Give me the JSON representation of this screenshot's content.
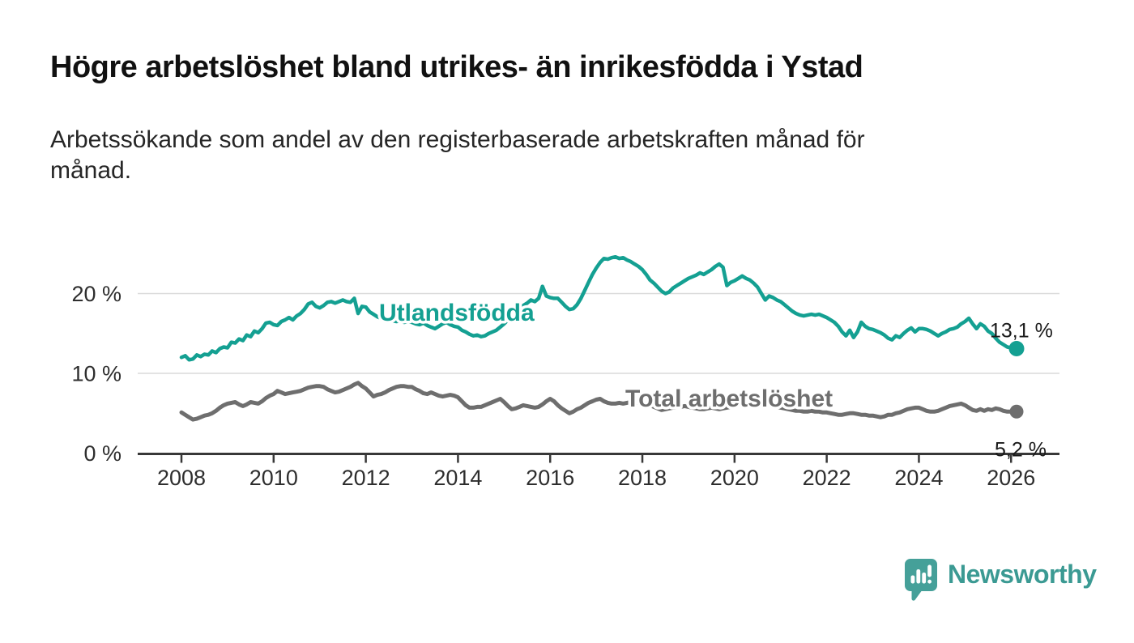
{
  "header": {
    "title": "Högre arbetslöshet bland utrikes- än inrikesfödda i Ystad",
    "subtitle": "Arbetssökande som andel av den registerbaserade arbetskraften månad för\nmånad."
  },
  "chart_data": {
    "type": "line",
    "x_unit": "month",
    "x_start": "2008-01",
    "x_end": "2026-02",
    "x_tick_years": [
      2008,
      2010,
      2012,
      2014,
      2016,
      2018,
      2020,
      2022,
      2024,
      2026
    ],
    "ylim": [
      0,
      26
    ],
    "yticks": [
      {
        "value": 0,
        "label": "0 %"
      },
      {
        "value": 10,
        "label": "10 %"
      },
      {
        "value": 20,
        "label": "20 %"
      }
    ],
    "grid": true,
    "legend_position": "inline-labels",
    "colors": {
      "utlandsfodda": "#14A092",
      "total": "#6E6E6E",
      "gridline": "#DADADA",
      "axis": "#383838",
      "value_label": "#1A1A1A"
    },
    "series": [
      {
        "name": "Utlandsfödda",
        "end_label": "13,1 %",
        "last_value": 13.1,
        "values": [
          12.0,
          12.2,
          11.7,
          11.8,
          12.3,
          12.1,
          12.4,
          12.3,
          12.8,
          12.6,
          13.1,
          13.3,
          13.2,
          13.9,
          13.8,
          14.3,
          14.1,
          14.8,
          14.6,
          15.3,
          15.1,
          15.6,
          16.3,
          16.4,
          16.1,
          16.0,
          16.5,
          16.7,
          17.0,
          16.7,
          17.2,
          17.5,
          18.0,
          18.7,
          18.9,
          18.4,
          18.2,
          18.5,
          18.9,
          19.0,
          18.8,
          19.0,
          19.2,
          19.0,
          18.9,
          19.4,
          17.5,
          18.4,
          18.3,
          17.7,
          17.4,
          17.1,
          16.9,
          16.8,
          16.7,
          16.6,
          16.5,
          16.6,
          16.4,
          16.5,
          16.4,
          16.2,
          16.1,
          16.3,
          16.0,
          15.8,
          15.6,
          15.9,
          16.2,
          16.4,
          16.1,
          15.9,
          15.8,
          15.4,
          15.2,
          14.9,
          14.7,
          14.8,
          14.6,
          14.7,
          15.0,
          15.2,
          15.4,
          15.8,
          16.2,
          16.7,
          17.2,
          17.6,
          18.1,
          18.5,
          18.8,
          19.2,
          19.0,
          19.4,
          20.9,
          19.7,
          19.5,
          19.4,
          19.4,
          18.9,
          18.4,
          18.0,
          18.1,
          18.6,
          19.4,
          20.4,
          21.4,
          22.4,
          23.2,
          23.9,
          24.4,
          24.3,
          24.5,
          24.6,
          24.4,
          24.5,
          24.2,
          24.0,
          23.7,
          23.4,
          23.0,
          22.4,
          21.7,
          21.3,
          20.8,
          20.3,
          20.0,
          20.2,
          20.7,
          21.0,
          21.3,
          21.6,
          21.9,
          22.1,
          22.3,
          22.6,
          22.4,
          22.7,
          23.0,
          23.4,
          23.7,
          23.3,
          21.0,
          21.4,
          21.6,
          21.9,
          22.2,
          21.9,
          21.7,
          21.3,
          20.8,
          20.0,
          19.2,
          19.7,
          19.5,
          19.2,
          19.0,
          18.6,
          18.2,
          17.8,
          17.5,
          17.3,
          17.2,
          17.3,
          17.4,
          17.3,
          17.4,
          17.2,
          17.0,
          16.7,
          16.4,
          15.9,
          15.2,
          14.7,
          15.4,
          14.5,
          15.2,
          16.4,
          15.9,
          15.6,
          15.5,
          15.3,
          15.1,
          14.8,
          14.4,
          14.2,
          14.7,
          14.5,
          15.0,
          15.4,
          15.7,
          15.2,
          15.6,
          15.6,
          15.5,
          15.3,
          15.0,
          14.7,
          15.0,
          15.2,
          15.5,
          15.6,
          15.8,
          16.2,
          16.5,
          16.9,
          16.2,
          15.6,
          16.2,
          15.9,
          15.3,
          15.0,
          14.4,
          13.9,
          13.6,
          13.3,
          13.2,
          13.1
        ]
      },
      {
        "name": "Total arbetslöshet",
        "end_label": "5,2 %",
        "last_value": 5.2,
        "values": [
          5.1,
          4.8,
          4.5,
          4.2,
          4.3,
          4.5,
          4.7,
          4.8,
          5.0,
          5.3,
          5.7,
          6.0,
          6.2,
          6.3,
          6.4,
          6.1,
          5.9,
          6.1,
          6.4,
          6.3,
          6.2,
          6.5,
          6.9,
          7.2,
          7.4,
          7.8,
          7.6,
          7.4,
          7.5,
          7.6,
          7.7,
          7.8,
          8.0,
          8.2,
          8.3,
          8.4,
          8.4,
          8.3,
          8.0,
          7.8,
          7.6,
          7.7,
          7.9,
          8.1,
          8.3,
          8.6,
          8.8,
          8.4,
          8.1,
          7.6,
          7.1,
          7.3,
          7.4,
          7.6,
          7.9,
          8.1,
          8.3,
          8.4,
          8.4,
          8.3,
          8.3,
          8.0,
          7.8,
          7.5,
          7.4,
          7.6,
          7.4,
          7.2,
          7.1,
          7.2,
          7.3,
          7.2,
          7.0,
          6.5,
          6.0,
          5.7,
          5.7,
          5.8,
          5.8,
          6.0,
          6.2,
          6.4,
          6.6,
          6.8,
          6.4,
          5.9,
          5.5,
          5.6,
          5.8,
          6.0,
          5.9,
          5.8,
          5.7,
          5.8,
          6.1,
          6.5,
          6.8,
          6.5,
          6.0,
          5.6,
          5.3,
          5.0,
          5.2,
          5.5,
          5.7,
          6.0,
          6.3,
          6.5,
          6.7,
          6.8,
          6.5,
          6.3,
          6.2,
          6.2,
          6.3,
          6.2,
          6.3,
          6.4,
          6.3,
          6.3,
          6.3,
          6.2,
          6.0,
          5.8,
          5.6,
          5.4,
          5.5,
          5.6,
          5.7,
          5.8,
          5.8,
          5.9,
          5.8,
          5.7,
          5.6,
          5.5,
          5.5,
          5.6,
          5.7,
          5.6,
          5.5,
          5.6,
          5.7,
          5.8,
          5.9,
          6.1,
          6.3,
          6.5,
          6.5,
          6.4,
          6.3,
          6.2,
          6.1,
          6.0,
          5.9,
          5.8,
          5.7,
          5.6,
          5.5,
          5.4,
          5.3,
          5.3,
          5.2,
          5.2,
          5.3,
          5.2,
          5.2,
          5.1,
          5.1,
          5.0,
          4.9,
          4.8,
          4.8,
          4.9,
          5.0,
          5.0,
          4.9,
          4.8,
          4.8,
          4.7,
          4.7,
          4.6,
          4.5,
          4.6,
          4.8,
          4.8,
          5.0,
          5.1,
          5.3,
          5.5,
          5.6,
          5.7,
          5.7,
          5.5,
          5.3,
          5.2,
          5.2,
          5.3,
          5.5,
          5.7,
          5.9,
          6.0,
          6.1,
          6.2,
          6.0,
          5.7,
          5.4,
          5.3,
          5.5,
          5.3,
          5.5,
          5.4,
          5.6,
          5.5,
          5.3,
          5.2,
          5.2,
          5.2
        ]
      }
    ]
  },
  "footer": {
    "brand": "Newsworthy",
    "logo_icon": "speech-bubble-bar-chart"
  }
}
